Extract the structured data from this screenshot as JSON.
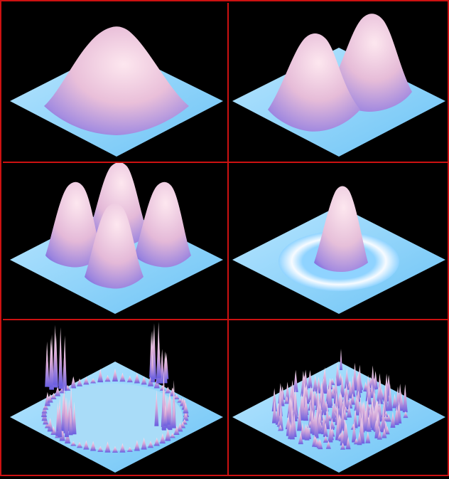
{
  "figure": {
    "rows": 3,
    "cols": 2,
    "border_color": "#cc1111",
    "background": "#000000",
    "surface_base_color": "#8fd3ff",
    "peak_color_light": "#ffd6e6",
    "peak_color_mid": "#c89ad8",
    "peak_color_dark": "#5a4fd8"
  },
  "panels": [
    {
      "id": "single-gaussian-peak",
      "description_kind": "one broad central peak"
    },
    {
      "id": "two-gaussian-peaks",
      "description_kind": "two peaks"
    },
    {
      "id": "four-gaussian-peaks",
      "description_kind": "four peaks in a ring"
    },
    {
      "id": "peak-with-ring",
      "description_kind": "central peak surrounded by shallow ring"
    },
    {
      "id": "spiky-ring-surface",
      "description_kind": "spikes around a circular rim"
    },
    {
      "id": "random-spike-field",
      "description_kind": "dense random spikes in a disc"
    }
  ]
}
